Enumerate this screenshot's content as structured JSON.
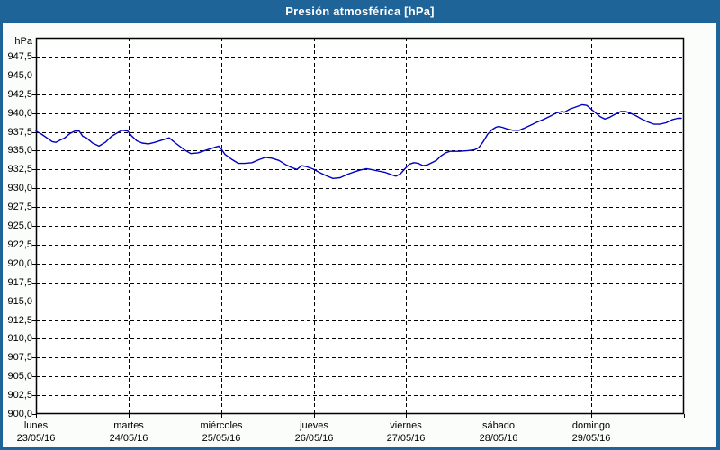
{
  "window": {
    "title": "Presión atmosférica [hPa]",
    "titlebar_color": "#1e6498",
    "background_color": "#fbfdfb"
  },
  "chart_data": {
    "type": "line",
    "title": "Presión atmosférica [hPa]",
    "ylabel": "hPa",
    "ylim": [
      900,
      950
    ],
    "ytick_step": 2.5,
    "grid": "dashed",
    "legend": "none",
    "plot_bg": "#ffffff",
    "grid_color": "#000000",
    "line_color": "#0000bf",
    "yticks": [
      {
        "value": 947.5,
        "label": "947,5"
      },
      {
        "value": 945.0,
        "label": "945,0"
      },
      {
        "value": 942.5,
        "label": "942,5"
      },
      {
        "value": 940.0,
        "label": "940,0"
      },
      {
        "value": 937.5,
        "label": "937,5"
      },
      {
        "value": 935.0,
        "label": "935,0"
      },
      {
        "value": 932.5,
        "label": "932,5"
      },
      {
        "value": 930.0,
        "label": "930,0"
      },
      {
        "value": 927.5,
        "label": "927,5"
      },
      {
        "value": 925.0,
        "label": "925,0"
      },
      {
        "value": 922.5,
        "label": "922,5"
      },
      {
        "value": 920.0,
        "label": "920,0"
      },
      {
        "value": 917.5,
        "label": "917,5"
      },
      {
        "value": 915.0,
        "label": "915,0"
      },
      {
        "value": 912.5,
        "label": "912,5"
      },
      {
        "value": 910.0,
        "label": "910,0"
      },
      {
        "value": 907.5,
        "label": "907,5"
      },
      {
        "value": 905.0,
        "label": "905,0"
      },
      {
        "value": 902.5,
        "label": "902,5"
      },
      {
        "value": 900.0,
        "label": "900,0"
      }
    ],
    "x_days": [
      {
        "name": "lunes",
        "date": "23/05/16"
      },
      {
        "name": "martes",
        "date": "24/05/16"
      },
      {
        "name": "miércoles",
        "date": "25/05/16"
      },
      {
        "name": "jueves",
        "date": "26/05/16"
      },
      {
        "name": "viernes",
        "date": "27/05/16"
      },
      {
        "name": "sábado",
        "date": "28/05/16"
      },
      {
        "name": "domingo",
        "date": "29/05/16"
      }
    ],
    "xlim_days": [
      0,
      7
    ],
    "series": [
      {
        "name": "Presión atmosférica",
        "unit": "hPa",
        "points": [
          [
            0.0,
            937.6
          ],
          [
            0.058,
            937.2
          ],
          [
            0.117,
            936.7
          ],
          [
            0.175,
            936.2
          ],
          [
            0.214,
            936.1
          ],
          [
            0.262,
            936.4
          ],
          [
            0.311,
            936.7
          ],
          [
            0.369,
            937.3
          ],
          [
            0.418,
            937.6
          ],
          [
            0.467,
            937.6
          ],
          [
            0.506,
            936.9
          ],
          [
            0.544,
            936.7
          ],
          [
            0.612,
            936.0
          ],
          [
            0.681,
            935.6
          ],
          [
            0.749,
            936.1
          ],
          [
            0.817,
            936.9
          ],
          [
            0.885,
            937.4
          ],
          [
            0.933,
            937.7
          ],
          [
            0.992,
            937.6
          ],
          [
            1.031,
            937.0
          ],
          [
            1.089,
            936.3
          ],
          [
            1.147,
            936.0
          ],
          [
            1.215,
            935.9
          ],
          [
            1.283,
            936.1
          ],
          [
            1.361,
            936.4
          ],
          [
            1.439,
            936.7
          ],
          [
            1.507,
            936.0
          ],
          [
            1.604,
            935.1
          ],
          [
            1.672,
            934.6
          ],
          [
            1.75,
            934.7
          ],
          [
            1.847,
            935.1
          ],
          [
            1.925,
            935.4
          ],
          [
            1.974,
            935.6
          ],
          [
            2.003,
            935.2
          ],
          [
            2.042,
            934.5
          ],
          [
            2.119,
            933.8
          ],
          [
            2.187,
            933.3
          ],
          [
            2.256,
            933.3
          ],
          [
            2.333,
            933.4
          ],
          [
            2.411,
            933.8
          ],
          [
            2.479,
            934.1
          ],
          [
            2.547,
            934.0
          ],
          [
            2.625,
            933.7
          ],
          [
            2.703,
            933.1
          ],
          [
            2.771,
            932.7
          ],
          [
            2.819,
            932.5
          ],
          [
            2.868,
            933.0
          ],
          [
            2.917,
            932.9
          ],
          [
            2.985,
            932.6
          ],
          [
            3.004,
            932.5
          ],
          [
            3.062,
            932.1
          ],
          [
            3.13,
            931.7
          ],
          [
            3.208,
            931.3
          ],
          [
            3.286,
            931.4
          ],
          [
            3.354,
            931.8
          ],
          [
            3.422,
            932.1
          ],
          [
            3.5,
            932.4
          ],
          [
            3.568,
            932.6
          ],
          [
            3.617,
            932.5
          ],
          [
            3.694,
            932.3
          ],
          [
            3.772,
            932.1
          ],
          [
            3.84,
            931.8
          ],
          [
            3.889,
            931.6
          ],
          [
            3.937,
            931.9
          ],
          [
            3.986,
            932.6
          ],
          [
            4.035,
            933.2
          ],
          [
            4.083,
            933.4
          ],
          [
            4.132,
            933.3
          ],
          [
            4.181,
            933.0
          ],
          [
            4.229,
            933.1
          ],
          [
            4.278,
            933.4
          ],
          [
            4.326,
            933.7
          ],
          [
            4.375,
            934.3
          ],
          [
            4.424,
            934.7
          ],
          [
            4.472,
            934.9
          ],
          [
            4.569,
            934.9
          ],
          [
            4.667,
            935.0
          ],
          [
            4.735,
            935.1
          ],
          [
            4.783,
            935.4
          ],
          [
            4.832,
            936.2
          ],
          [
            4.881,
            937.2
          ],
          [
            4.929,
            937.8
          ],
          [
            4.968,
            938.1
          ],
          [
            4.997,
            938.2
          ],
          [
            5.036,
            938.1
          ],
          [
            5.085,
            937.9
          ],
          [
            5.153,
            937.7
          ],
          [
            5.221,
            937.7
          ],
          [
            5.279,
            938.0
          ],
          [
            5.347,
            938.4
          ],
          [
            5.415,
            938.8
          ],
          [
            5.493,
            939.2
          ],
          [
            5.561,
            939.6
          ],
          [
            5.619,
            940.0
          ],
          [
            5.687,
            940.2
          ],
          [
            5.707,
            940.1
          ],
          [
            5.765,
            940.5
          ],
          [
            5.833,
            940.8
          ],
          [
            5.901,
            941.1
          ],
          [
            5.95,
            941.0
          ],
          [
            5.999,
            940.5
          ],
          [
            6.047,
            940.0
          ],
          [
            6.096,
            939.5
          ],
          [
            6.144,
            939.2
          ],
          [
            6.193,
            939.4
          ],
          [
            6.251,
            939.8
          ],
          [
            6.319,
            940.2
          ],
          [
            6.368,
            940.2
          ],
          [
            6.417,
            940.0
          ],
          [
            6.485,
            939.6
          ],
          [
            6.543,
            939.2
          ],
          [
            6.611,
            938.8
          ],
          [
            6.679,
            938.5
          ],
          [
            6.738,
            938.5
          ],
          [
            6.806,
            938.7
          ],
          [
            6.874,
            939.1
          ],
          [
            6.932,
            939.3
          ],
          [
            6.971,
            939.3
          ]
        ]
      }
    ]
  }
}
